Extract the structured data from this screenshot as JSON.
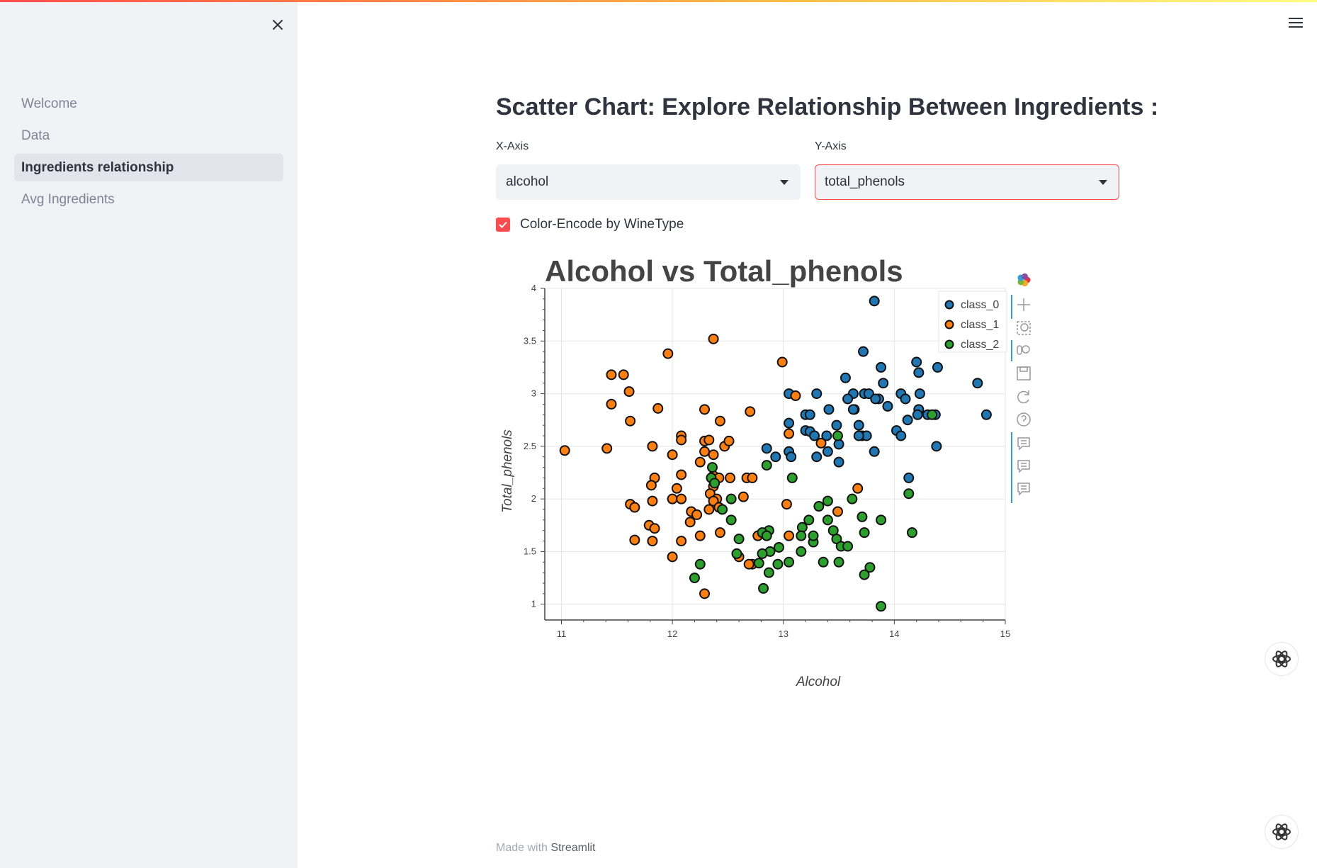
{
  "sidebar": {
    "items": [
      {
        "label": "Welcome",
        "active": false
      },
      {
        "label": "Data",
        "active": false
      },
      {
        "label": "Ingredients relationship",
        "active": true
      },
      {
        "label": "Avg Ingredients",
        "active": false
      }
    ]
  },
  "main": {
    "title": "Scatter Chart: Explore Relationship Between Ingredients :",
    "x_axis_label": "X-Axis",
    "x_axis_value": "alcohol",
    "y_axis_label": "Y-Axis",
    "y_axis_value": "total_phenols",
    "checkbox_label": "Color-Encode by WineType",
    "checkbox_checked": true
  },
  "footer": {
    "prefix": "Made with",
    "brand": "Streamlit"
  },
  "colors": {
    "accent": "#ff4b4b",
    "class_0": "#1f77b4",
    "class_1": "#ff7f0e",
    "class_2": "#2ca02c"
  },
  "chart_data": {
    "type": "scatter",
    "title": "Alcohol vs Total_phenols",
    "xlabel": "Alcohol",
    "ylabel": "Total_phenols",
    "xlim": [
      10.85,
      15.0
    ],
    "ylim": [
      0.85,
      4.0
    ],
    "xticks": [
      "11",
      "12",
      "13",
      "14",
      "15"
    ],
    "yticks": [
      "1",
      "1.5",
      "2",
      "2.5",
      "3",
      "3.5",
      "4"
    ],
    "grid": true,
    "legend": "top-right",
    "series": [
      {
        "name": "class_0",
        "color": "#1f77b4",
        "points": [
          [
            13.82,
            3.88
          ],
          [
            13.72,
            3.4
          ],
          [
            13.56,
            3.15
          ],
          [
            13.88,
            3.25
          ],
          [
            14.2,
            3.3
          ],
          [
            14.22,
            3.2
          ],
          [
            14.39,
            3.25
          ],
          [
            14.75,
            3.1
          ],
          [
            14.83,
            2.8
          ],
          [
            13.9,
            3.1
          ],
          [
            13.05,
            3.0
          ],
          [
            13.3,
            3.0
          ],
          [
            13.63,
            3.0
          ],
          [
            14.06,
            3.0
          ],
          [
            14.23,
            3.0
          ],
          [
            13.73,
            3.0
          ],
          [
            13.77,
            3.0
          ],
          [
            13.86,
            2.95
          ],
          [
            13.83,
            2.95
          ],
          [
            14.1,
            2.95
          ],
          [
            13.58,
            2.95
          ],
          [
            13.94,
            2.88
          ],
          [
            13.2,
            2.8
          ],
          [
            13.24,
            2.8
          ],
          [
            14.22,
            2.85
          ],
          [
            14.12,
            2.75
          ],
          [
            14.3,
            2.8
          ],
          [
            14.21,
            2.8
          ],
          [
            13.05,
            2.72
          ],
          [
            13.48,
            2.7
          ],
          [
            13.64,
            2.85
          ],
          [
            13.71,
            2.6
          ],
          [
            13.75,
            2.6
          ],
          [
            13.68,
            2.6
          ],
          [
            14.02,
            2.65
          ],
          [
            14.06,
            2.6
          ],
          [
            13.2,
            2.65
          ],
          [
            13.24,
            2.64
          ],
          [
            13.28,
            2.6
          ],
          [
            13.41,
            2.85
          ],
          [
            13.68,
            2.7
          ],
          [
            13.5,
            2.52
          ],
          [
            13.05,
            2.45
          ],
          [
            13.07,
            2.4
          ],
          [
            12.93,
            2.4
          ],
          [
            13.3,
            2.4
          ],
          [
            13.4,
            2.45
          ],
          [
            13.82,
            2.45
          ],
          [
            12.85,
            2.48
          ],
          [
            14.38,
            2.5
          ],
          [
            13.5,
            2.35
          ],
          [
            14.13,
            2.2
          ],
          [
            13.63,
            2.85
          ],
          [
            14.37,
            2.8
          ],
          [
            13.39,
            2.6
          ]
        ]
      },
      {
        "name": "class_1",
        "color": "#ff7f0e",
        "points": [
          [
            12.37,
            3.52
          ],
          [
            11.96,
            3.38
          ],
          [
            12.99,
            3.3
          ],
          [
            11.45,
            3.18
          ],
          [
            11.56,
            3.18
          ],
          [
            11.61,
            3.02
          ],
          [
            13.11,
            2.98
          ],
          [
            11.45,
            2.9
          ],
          [
            11.87,
            2.86
          ],
          [
            12.29,
            2.85
          ],
          [
            12.7,
            2.83
          ],
          [
            11.62,
            2.74
          ],
          [
            12.43,
            2.74
          ],
          [
            12.08,
            2.6
          ],
          [
            12.08,
            2.56
          ],
          [
            13.05,
            2.62
          ],
          [
            12.29,
            2.55
          ],
          [
            12.33,
            2.56
          ],
          [
            11.41,
            2.48
          ],
          [
            11.82,
            2.5
          ],
          [
            12.47,
            2.5
          ],
          [
            12.51,
            2.55
          ],
          [
            12.0,
            2.42
          ],
          [
            12.37,
            2.42
          ],
          [
            12.29,
            2.45
          ],
          [
            13.34,
            2.53
          ],
          [
            12.25,
            2.35
          ],
          [
            11.03,
            2.46
          ],
          [
            12.08,
            2.23
          ],
          [
            12.37,
            2.22
          ],
          [
            11.84,
            2.2
          ],
          [
            12.42,
            2.2
          ],
          [
            12.52,
            2.2
          ],
          [
            12.67,
            2.2
          ],
          [
            12.72,
            2.2
          ],
          [
            11.81,
            2.13
          ],
          [
            12.04,
            2.1
          ],
          [
            12.37,
            2.12
          ],
          [
            11.62,
            1.95
          ],
          [
            11.66,
            1.92
          ],
          [
            12.0,
            2.0
          ],
          [
            12.08,
            2.0
          ],
          [
            12.34,
            2.05
          ],
          [
            12.4,
            2.0
          ],
          [
            12.64,
            2.02
          ],
          [
            13.03,
            1.95
          ],
          [
            13.67,
            2.1
          ],
          [
            12.37,
            1.98
          ],
          [
            11.82,
            1.98
          ],
          [
            12.17,
            1.88
          ],
          [
            12.33,
            1.9
          ],
          [
            12.42,
            1.92
          ],
          [
            12.22,
            1.85
          ],
          [
            12.16,
            1.78
          ],
          [
            11.79,
            1.75
          ],
          [
            11.84,
            1.72
          ],
          [
            13.49,
            1.88
          ],
          [
            12.43,
            1.68
          ],
          [
            12.25,
            1.65
          ],
          [
            13.05,
            1.65
          ],
          [
            11.66,
            1.61
          ],
          [
            11.82,
            1.6
          ],
          [
            12.08,
            1.6
          ],
          [
            12.0,
            1.45
          ],
          [
            12.6,
            1.45
          ],
          [
            12.77,
            1.65
          ],
          [
            12.72,
            1.38
          ],
          [
            12.69,
            1.38
          ],
          [
            12.29,
            1.1
          ]
        ]
      },
      {
        "name": "class_2",
        "color": "#2ca02c",
        "points": [
          [
            14.34,
            2.8
          ],
          [
            13.49,
            2.6
          ],
          [
            13.08,
            2.2
          ],
          [
            12.36,
            2.3
          ],
          [
            12.85,
            2.32
          ],
          [
            14.13,
            2.05
          ],
          [
            12.53,
            2.0
          ],
          [
            13.62,
            2.0
          ],
          [
            13.4,
            1.98
          ],
          [
            13.32,
            1.93
          ],
          [
            12.45,
            1.9
          ],
          [
            12.53,
            1.8
          ],
          [
            13.17,
            1.73
          ],
          [
            13.23,
            1.8
          ],
          [
            13.4,
            1.8
          ],
          [
            13.71,
            1.83
          ],
          [
            13.88,
            1.8
          ],
          [
            12.87,
            1.7
          ],
          [
            12.81,
            1.68
          ],
          [
            13.16,
            1.65
          ],
          [
            13.27,
            1.59
          ],
          [
            13.45,
            1.7
          ],
          [
            13.48,
            1.62
          ],
          [
            13.52,
            1.55
          ],
          [
            13.58,
            1.55
          ],
          [
            13.73,
            1.68
          ],
          [
            14.16,
            1.68
          ],
          [
            12.6,
            1.62
          ],
          [
            12.85,
            1.65
          ],
          [
            12.88,
            1.5
          ],
          [
            12.81,
            1.48
          ],
          [
            12.96,
            1.54
          ],
          [
            12.58,
            1.48
          ],
          [
            13.16,
            1.5
          ],
          [
            13.05,
            1.4
          ],
          [
            13.36,
            1.4
          ],
          [
            13.5,
            1.4
          ],
          [
            12.95,
            1.38
          ],
          [
            12.78,
            1.39
          ],
          [
            12.87,
            1.3
          ],
          [
            13.78,
            1.35
          ],
          [
            13.73,
            1.28
          ],
          [
            12.25,
            1.38
          ],
          [
            12.2,
            1.25
          ],
          [
            12.82,
            1.15
          ],
          [
            13.88,
            0.98
          ],
          [
            12.35,
            2.2
          ],
          [
            12.38,
            2.15
          ],
          [
            13.27,
            1.65
          ]
        ]
      }
    ]
  }
}
